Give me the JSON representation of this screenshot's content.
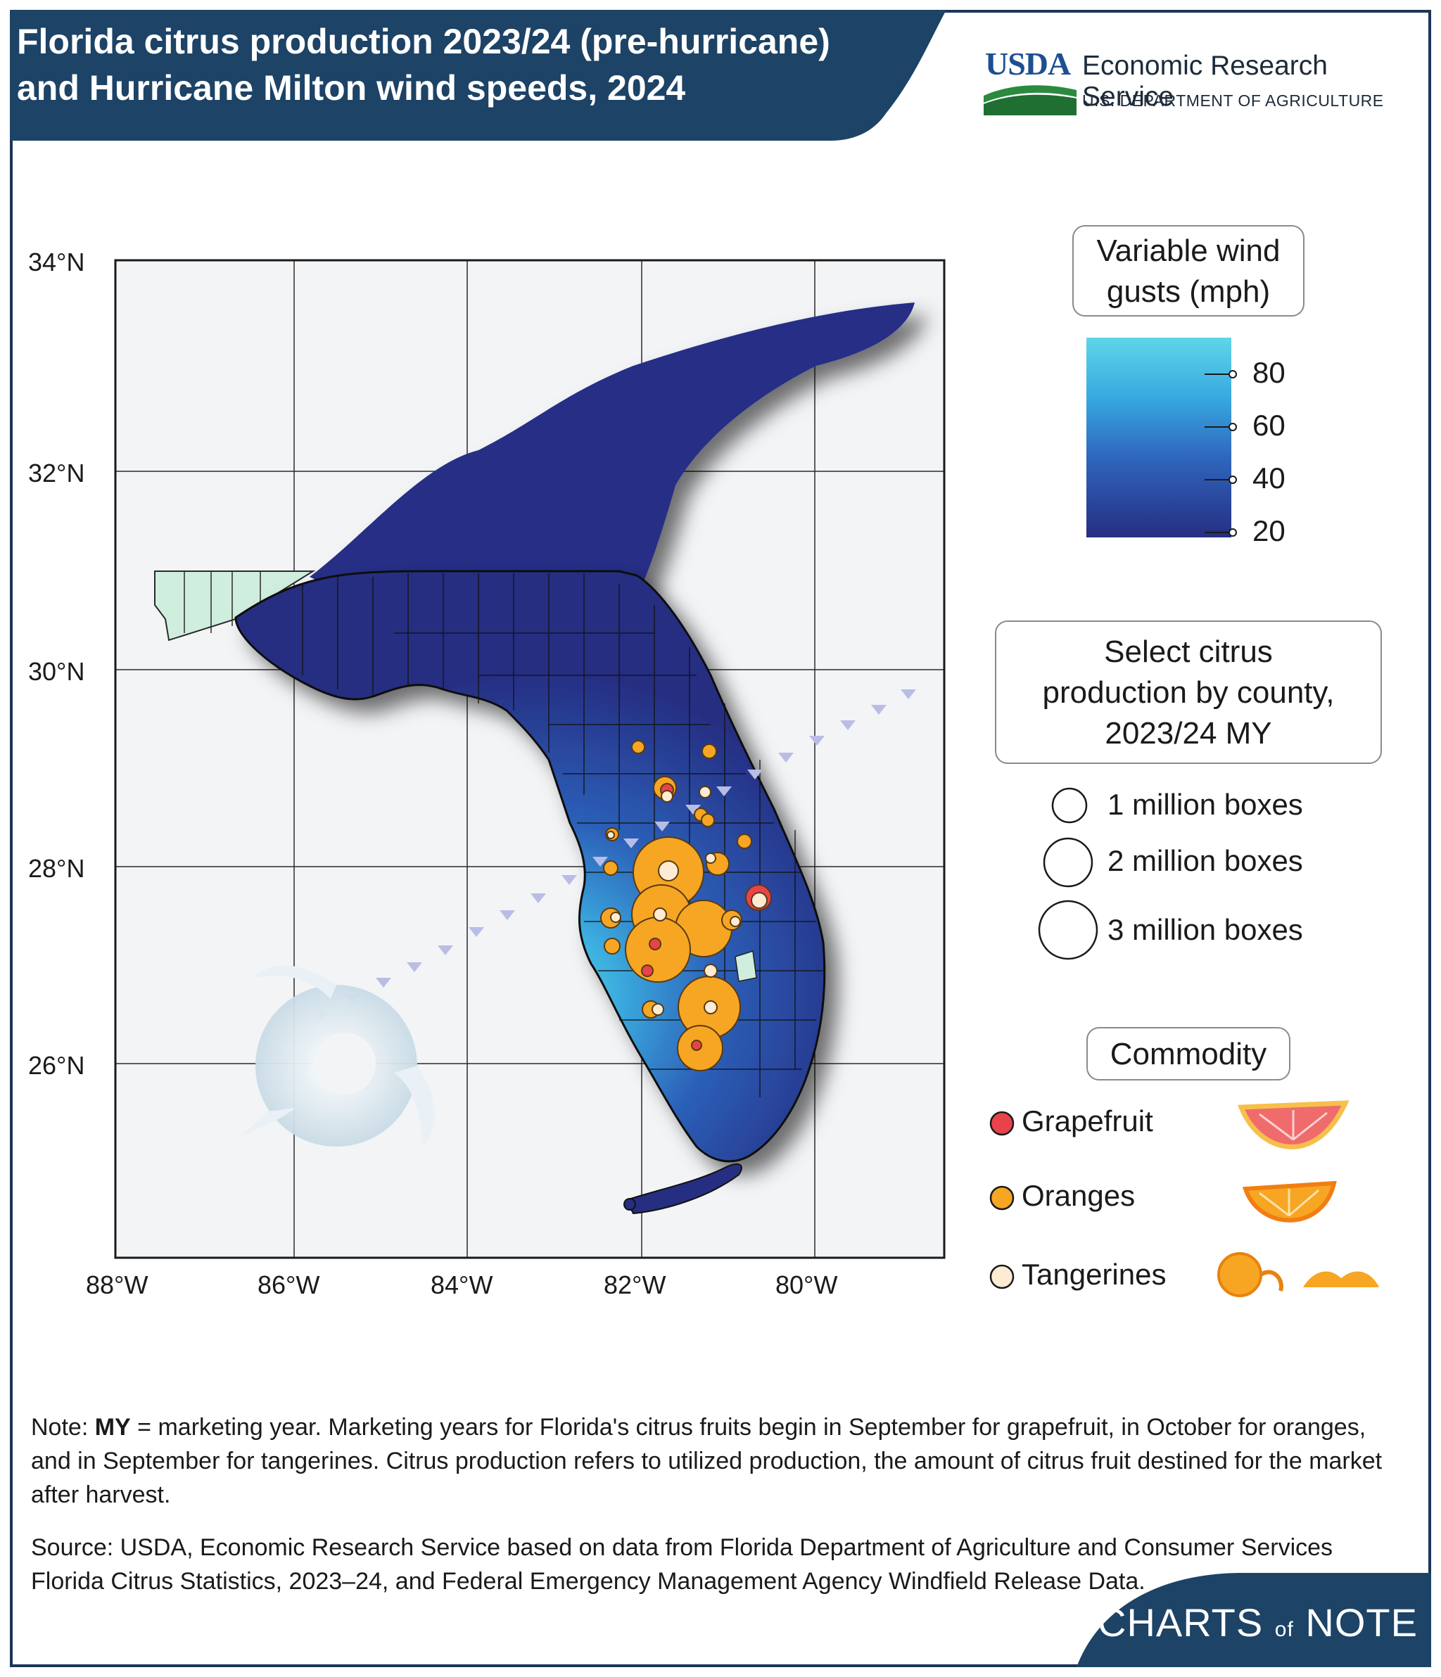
{
  "header": {
    "title_line1": "Florida citrus production 2023/24 (pre-hurricane)",
    "title_line2": "and Hurricane Milton wind speeds, 2024",
    "bg_color": "#1d4366"
  },
  "agency": {
    "usda": "USDA",
    "name": "Economic Research Service",
    "department": "U.S. DEPARTMENT OF AGRICULTURE"
  },
  "map": {
    "lat_labels": [
      "34°N",
      "32°N",
      "30°N",
      "28°N",
      "26°N"
    ],
    "lon_labels": [
      "88°W",
      "86°W",
      "84°W",
      "82°W",
      "80°W"
    ],
    "wind_colors": {
      "low": "#262e82",
      "mid": "#2f66bd",
      "high": "#4fd3ea"
    },
    "hurricane_track_color": "#b8bde6"
  },
  "wind_legend": {
    "title_line1": "Variable wind",
    "title_line2": "gusts (mph)",
    "ticks": [
      "80",
      "60",
      "40",
      "20"
    ]
  },
  "size_legend": {
    "title_line1": "Select citrus",
    "title_line2": "production by county,",
    "title_line3": "2023/24 MY",
    "items": [
      "1 million boxes",
      "2 million boxes",
      "3 million boxes"
    ]
  },
  "commodity_legend": {
    "title": "Commodity",
    "items": [
      {
        "label": "Grapefruit",
        "color": "#e8434b"
      },
      {
        "label": "Oranges",
        "color": "#f6a623"
      },
      {
        "label": "Tangerines",
        "color": "#fdebd3"
      }
    ]
  },
  "note": {
    "bold": "MY",
    "prefix": "Note: ",
    "text": " = marketing year. Marketing years for Florida's citrus fruits begin in September for grapefruit, in October for oranges, and in September for tangerines. Citrus production refers to utilized production, the amount of citrus fruit destined for the market after harvest."
  },
  "source": "Source: USDA, Economic Research Service based on data from Florida Department of Agriculture and Consumer Services Florida Citrus Statistics, 2023–24, and Federal Emergency Management Agency Windfield Release Data.",
  "footer": {
    "charts": "CHARTS",
    "of": "of",
    "note": "NOTE"
  }
}
